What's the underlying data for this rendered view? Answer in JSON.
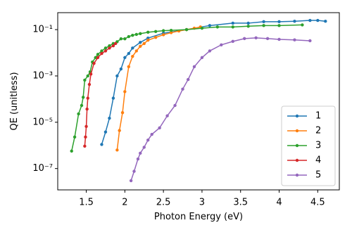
{
  "chart_data": {
    "type": "line",
    "xlabel": "Photon Energy (eV)",
    "ylabel": "QE (unitless)",
    "xlim": [
      1.13,
      4.78
    ],
    "xticks": [
      1.5,
      2.0,
      2.5,
      3.0,
      3.5,
      4.0,
      4.5
    ],
    "ylim": [
      1.2e-08,
      0.54
    ],
    "log_y": true,
    "yticks": [
      {
        "value": 0.1,
        "label": "10⁻¹"
      },
      {
        "value": 0.001,
        "label": "10⁻³"
      },
      {
        "value": 1e-05,
        "label": "10⁻⁵"
      },
      {
        "value": 1e-07,
        "label": "10⁻⁷"
      }
    ],
    "legend": "lower right",
    "grid": false,
    "series": [
      {
        "name": "1",
        "color": "#1f77b4",
        "x": [
          1.7,
          1.75,
          1.8,
          1.85,
          1.9,
          1.95,
          2.0,
          2.05,
          2.1,
          2.2,
          2.3,
          2.5,
          2.8,
          3.1,
          3.4,
          3.6,
          3.8,
          4.0,
          4.2,
          4.4,
          4.5,
          4.6
        ],
        "values": [
          1.1e-06,
          3.8e-06,
          1.5e-05,
          0.00011,
          0.001,
          0.002,
          0.0062,
          0.0093,
          0.016,
          0.028,
          0.043,
          0.07,
          0.1,
          0.15,
          0.19,
          0.19,
          0.22,
          0.22,
          0.23,
          0.25,
          0.25,
          0.23
        ]
      },
      {
        "name": "2",
        "color": "#ff7f0e",
        "x": [
          1.9,
          1.93,
          1.97,
          2.0,
          2.05,
          2.1,
          2.15,
          2.2,
          2.25,
          2.3,
          2.4,
          2.5,
          2.6,
          2.7,
          2.8,
          2.9,
          2.98
        ],
        "values": [
          6.3e-07,
          4.4e-06,
          2.6e-05,
          0.00021,
          0.0025,
          0.007,
          0.012,
          0.019,
          0.025,
          0.035,
          0.046,
          0.06,
          0.074,
          0.087,
          0.1,
          0.115,
          0.13
        ]
      },
      {
        "name": "3",
        "color": "#2ca02c",
        "x": [
          1.31,
          1.35,
          1.4,
          1.44,
          1.46,
          1.48,
          1.52,
          1.55,
          1.58,
          1.62,
          1.65,
          1.7,
          1.75,
          1.8,
          1.85,
          1.9,
          1.95,
          2.0,
          2.05,
          2.1,
          2.15,
          2.2,
          2.3,
          2.4,
          2.5,
          2.6,
          2.8,
          3.0,
          3.2,
          3.4,
          3.6,
          3.8,
          4.0,
          4.3
        ],
        "values": [
          5.7e-07,
          2.3e-06,
          2.3e-05,
          5.3e-05,
          0.00012,
          0.00066,
          0.001,
          0.0015,
          0.004,
          0.0062,
          0.0085,
          0.012,
          0.016,
          0.02,
          0.025,
          0.03,
          0.04,
          0.04,
          0.05,
          0.057,
          0.062,
          0.067,
          0.077,
          0.083,
          0.09,
          0.093,
          0.1,
          0.115,
          0.13,
          0.13,
          0.14,
          0.15,
          0.15,
          0.16
        ]
      },
      {
        "name": "4",
        "color": "#d62728",
        "x": [
          1.48,
          1.49,
          1.5,
          1.51,
          1.52,
          1.54,
          1.56,
          1.6,
          1.65,
          1.7,
          1.75,
          1.8,
          1.85,
          1.88
        ],
        "values": [
          9.3e-07,
          2.3e-06,
          6.6e-06,
          3.7e-05,
          0.00011,
          0.00043,
          0.0012,
          0.0035,
          0.0062,
          0.0093,
          0.012,
          0.016,
          0.02,
          0.025
        ]
      },
      {
        "name": "5",
        "color": "#9467bd",
        "x": [
          2.08,
          2.12,
          2.17,
          2.2,
          2.25,
          2.3,
          2.35,
          2.45,
          2.55,
          2.65,
          2.75,
          2.82,
          2.9,
          3.0,
          3.1,
          3.25,
          3.4,
          3.55,
          3.7,
          3.85,
          4.0,
          4.2,
          4.4
        ],
        "values": [
          3e-08,
          7.6e-08,
          2.6e-07,
          4.6e-07,
          8.3e-07,
          1.7e-06,
          3e-06,
          5.7e-06,
          1.9e-05,
          5.3e-05,
          0.00027,
          0.0007,
          0.0025,
          0.0062,
          0.012,
          0.022,
          0.031,
          0.041,
          0.044,
          0.041,
          0.038,
          0.036,
          0.033
        ]
      }
    ]
  }
}
